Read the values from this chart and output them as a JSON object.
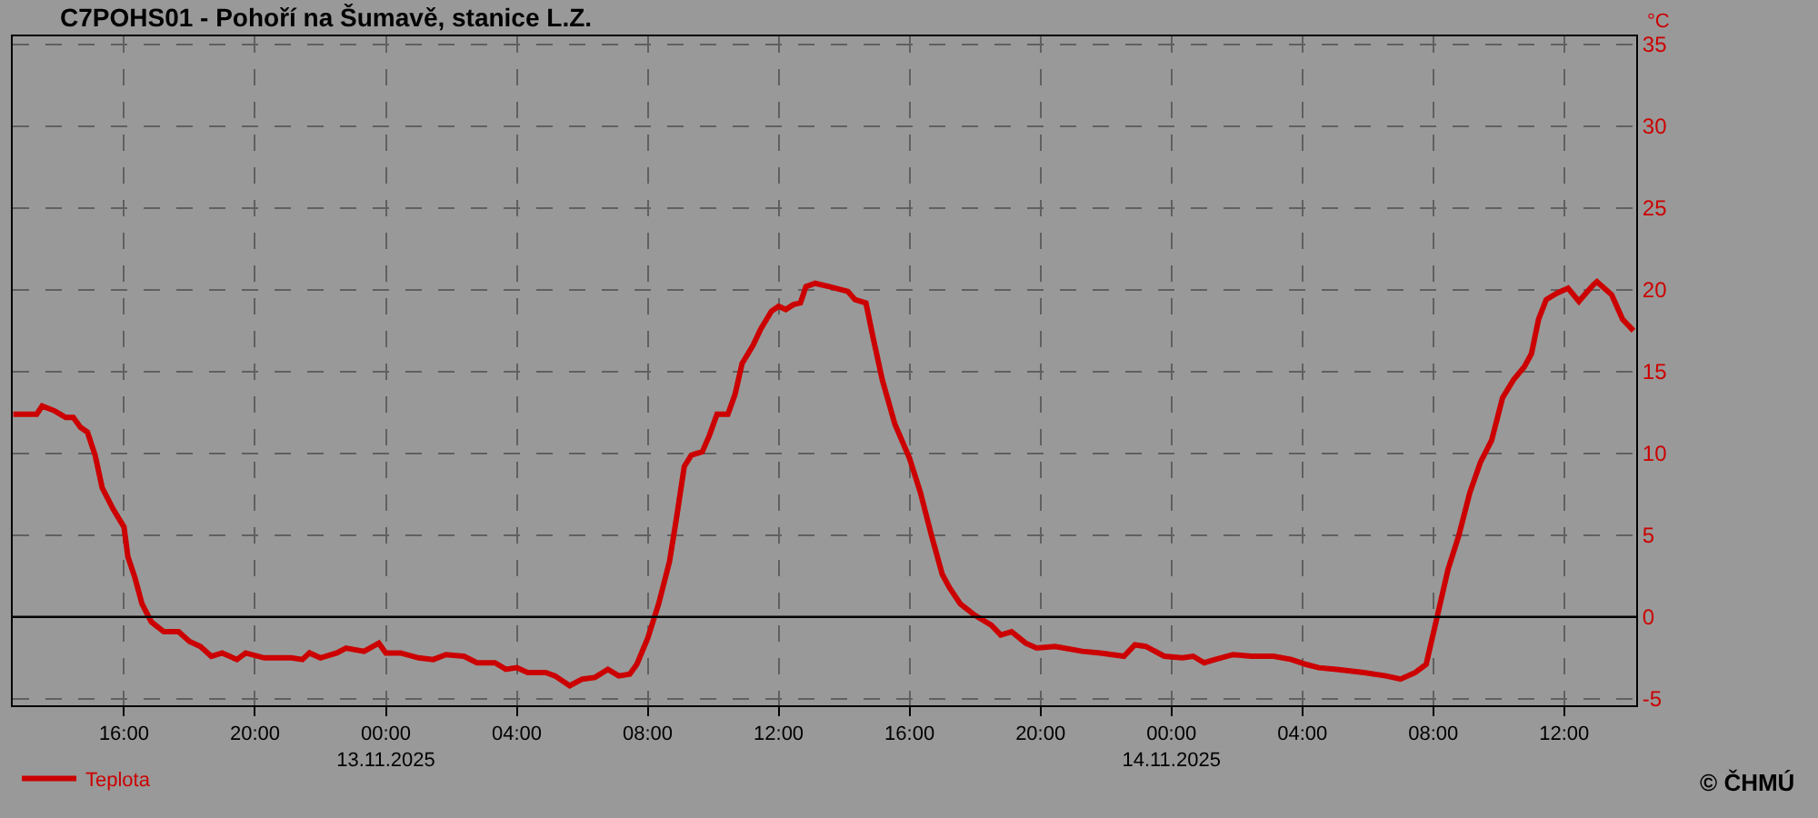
{
  "chart_data": {
    "type": "line",
    "title": "C7POHS01 - Pohoří na Šumavě, stanice L.Z.",
    "ylabel": "°C",
    "x": [
      "2025-11-12T12:37",
      "2025-11-12T13:20",
      "2025-11-12T13:30",
      "2025-11-12T13:53",
      "2025-11-12T14:13",
      "2025-11-12T14:27",
      "2025-11-12T14:40",
      "2025-11-12T14:53",
      "2025-11-12T15:07",
      "2025-11-12T15:20",
      "2025-11-12T15:40",
      "2025-11-12T16:00",
      "2025-11-12T16:07",
      "2025-11-12T16:20",
      "2025-11-12T16:33",
      "2025-11-12T16:50",
      "2025-11-12T17:13",
      "2025-11-12T17:40",
      "2025-11-12T18:00",
      "2025-11-12T18:20",
      "2025-11-12T18:40",
      "2025-11-12T19:00",
      "2025-11-12T19:27",
      "2025-11-12T19:43",
      "2025-11-12T20:17",
      "2025-11-12T21:07",
      "2025-11-12T21:27",
      "2025-11-12T21:40",
      "2025-11-12T22:00",
      "2025-11-12T22:30",
      "2025-11-12T22:47",
      "2025-11-12T23:20",
      "2025-11-12T23:47",
      "2025-11-13T00:00",
      "2025-11-13T00:27",
      "2025-11-13T01:00",
      "2025-11-13T01:27",
      "2025-11-13T01:50",
      "2025-11-13T02:23",
      "2025-11-13T02:47",
      "2025-11-13T03:20",
      "2025-11-13T03:40",
      "2025-11-13T04:00",
      "2025-11-13T04:20",
      "2025-11-13T04:53",
      "2025-11-13T05:10",
      "2025-11-13T05:37",
      "2025-11-13T06:00",
      "2025-11-13T06:23",
      "2025-11-13T06:47",
      "2025-11-13T07:07",
      "2025-11-13T07:27",
      "2025-11-13T07:40",
      "2025-11-13T08:00",
      "2025-11-13T08:20",
      "2025-11-13T08:40",
      "2025-11-13T08:53",
      "2025-11-13T09:07",
      "2025-11-13T09:20",
      "2025-11-13T09:40",
      "2025-11-13T09:53",
      "2025-11-13T10:07",
      "2025-11-13T10:27",
      "2025-11-13T10:40",
      "2025-11-13T10:53",
      "2025-11-13T11:13",
      "2025-11-13T11:27",
      "2025-11-13T11:47",
      "2025-11-13T12:00",
      "2025-11-13T12:13",
      "2025-11-13T12:27",
      "2025-11-13T12:40",
      "2025-11-13T12:50",
      "2025-11-13T13:07",
      "2025-11-13T13:33",
      "2025-11-13T14:07",
      "2025-11-13T14:20",
      "2025-11-13T14:40",
      "2025-11-13T14:53",
      "2025-11-13T15:10",
      "2025-11-13T15:33",
      "2025-11-13T16:00",
      "2025-11-13T16:20",
      "2025-11-13T16:40",
      "2025-11-13T17:00",
      "2025-11-13T17:13",
      "2025-11-13T17:33",
      "2025-11-13T18:00",
      "2025-11-13T18:30",
      "2025-11-13T18:47",
      "2025-11-13T19:07",
      "2025-11-13T19:33",
      "2025-11-13T19:53",
      "2025-11-13T20:27",
      "2025-11-13T21:17",
      "2025-11-13T21:50",
      "2025-11-13T22:33",
      "2025-11-13T22:53",
      "2025-11-13T23:13",
      "2025-11-13T23:47",
      "2025-11-14T00:20",
      "2025-11-14T00:40",
      "2025-11-14T01:00",
      "2025-11-14T01:20",
      "2025-11-14T01:53",
      "2025-11-14T02:27",
      "2025-11-14T03:07",
      "2025-11-14T03:40",
      "2025-11-14T04:07",
      "2025-11-14T04:30",
      "2025-11-14T05:03",
      "2025-11-14T05:53",
      "2025-11-14T06:33",
      "2025-11-14T07:00",
      "2025-11-14T07:27",
      "2025-11-14T07:47",
      "2025-11-14T08:07",
      "2025-11-14T08:27",
      "2025-11-14T08:47",
      "2025-11-14T09:07",
      "2025-11-14T09:27",
      "2025-11-14T09:47",
      "2025-11-14T10:07",
      "2025-11-14T10:27",
      "2025-11-14T10:47",
      "2025-11-14T11:00",
      "2025-11-14T11:13",
      "2025-11-14T11:27",
      "2025-11-14T11:47",
      "2025-11-14T12:07",
      "2025-11-14T12:27",
      "2025-11-14T12:53",
      "2025-11-14T13:00",
      "2025-11-14T13:27",
      "2025-11-14T13:47",
      "2025-11-14T14:07"
    ],
    "series": [
      {
        "name": "Teplota",
        "color": "#cc0000",
        "values": [
          12.4,
          12.4,
          12.9,
          12.6,
          12.2,
          12.2,
          11.6,
          11.3,
          9.9,
          7.9,
          6.6,
          5.5,
          3.7,
          2.4,
          0.8,
          -0.3,
          -0.9,
          -0.9,
          -1.5,
          -1.8,
          -2.4,
          -2.2,
          -2.6,
          -2.2,
          -2.5,
          -2.5,
          -2.6,
          -2.2,
          -2.5,
          -2.2,
          -1.9,
          -2.1,
          -1.6,
          -2.2,
          -2.2,
          -2.5,
          -2.6,
          -2.3,
          -2.4,
          -2.8,
          -2.8,
          -3.2,
          -3.1,
          -3.4,
          -3.4,
          -3.6,
          -4.2,
          -3.8,
          -3.7,
          -3.2,
          -3.6,
          -3.5,
          -2.9,
          -1.3,
          0.8,
          3.4,
          6.1,
          9.2,
          9.9,
          10.1,
          11.1,
          12.4,
          12.4,
          13.6,
          15.5,
          16.6,
          17.6,
          18.7,
          19.0,
          18.8,
          19.1,
          19.2,
          20.2,
          20.4,
          20.2,
          19.9,
          19.4,
          19.2,
          17.1,
          14.5,
          11.8,
          9.7,
          7.6,
          5.0,
          2.6,
          1.8,
          0.8,
          0.1,
          -0.5,
          -1.1,
          -0.9,
          -1.6,
          -1.9,
          -1.8,
          -2.1,
          -2.2,
          -2.4,
          -1.7,
          -1.8,
          -2.4,
          -2.5,
          -2.4,
          -2.8,
          -2.6,
          -2.3,
          -2.4,
          -2.4,
          -2.6,
          -2.9,
          -3.1,
          -3.2,
          -3.4,
          -3.6,
          -3.8,
          -3.4,
          -2.9,
          0.0,
          2.9,
          5.0,
          7.6,
          9.5,
          10.8,
          13.4,
          14.5,
          15.3,
          16.1,
          18.2,
          19.4,
          19.8,
          20.1,
          19.3,
          20.3,
          20.5,
          19.7,
          18.2,
          17.5
        ]
      }
    ],
    "xlim": [
      "2025-11-12T12:36",
      "2025-11-14T14:12"
    ],
    "xticks": [
      {
        "value": "2025-11-12T16:00",
        "label": "16:00"
      },
      {
        "value": "2025-11-12T20:00",
        "label": "20:00"
      },
      {
        "value": "2025-11-13T00:00",
        "label": "00:00\n13.11.2025"
      },
      {
        "value": "2025-11-13T04:00",
        "label": "04:00"
      },
      {
        "value": "2025-11-13T08:00",
        "label": "08:00"
      },
      {
        "value": "2025-11-13T12:00",
        "label": "12:00"
      },
      {
        "value": "2025-11-13T16:00",
        "label": "16:00"
      },
      {
        "value": "2025-11-13T20:00",
        "label": "20:00"
      },
      {
        "value": "2025-11-14T00:00",
        "label": "00:00\n14.11.2025"
      },
      {
        "value": "2025-11-14T04:00",
        "label": "04:00"
      },
      {
        "value": "2025-11-14T08:00",
        "label": "08:00"
      },
      {
        "value": "2025-11-14T12:00",
        "label": "12:00"
      }
    ],
    "ylim": [
      -5.4,
      35.5
    ],
    "yticks": [
      -5,
      0,
      5,
      10,
      15,
      20,
      25,
      30,
      35
    ],
    "ref_lines": [
      {
        "axis": "y",
        "value": 0,
        "color": "#000000",
        "line_style": "solid"
      }
    ],
    "grid": true,
    "legend": "bottom left",
    "marker": "none",
    "line_style": "solid",
    "annotations": [
      "© ČHMÚ"
    ]
  }
}
